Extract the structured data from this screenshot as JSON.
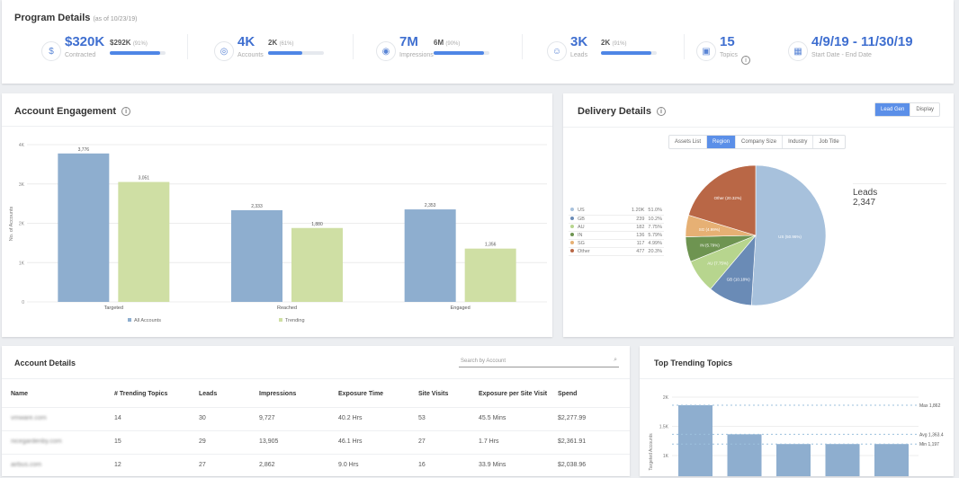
{
  "program": {
    "title": "Program Details",
    "as_of": "(as of 10/23/19)",
    "kpis": [
      {
        "icon": "dollar-icon",
        "glyph": "$",
        "value": "$320K",
        "label": "Contracted",
        "secondary": "$292K",
        "pct": "(91%)",
        "progress": 91
      },
      {
        "icon": "target-icon",
        "glyph": "◎",
        "value": "4K",
        "label": "Accounts",
        "secondary": "2K",
        "pct": "(61%)",
        "progress": 61
      },
      {
        "icon": "eye-icon",
        "glyph": "◉",
        "value": "7M",
        "label": "Impressions",
        "secondary": "6M",
        "pct": "(90%)",
        "progress": 90
      },
      {
        "icon": "user-icon",
        "glyph": "☺",
        "value": "3K",
        "label": "Leads",
        "secondary": "2K",
        "pct": "(91%)",
        "progress": 91
      },
      {
        "icon": "image-icon",
        "glyph": "▣",
        "value": "15",
        "label": "Topics"
      },
      {
        "icon": "calendar-icon",
        "glyph": "▦",
        "value": "4/9/19 - 11/30/19",
        "label": "Start Date - End Date"
      }
    ]
  },
  "engagement": {
    "title": "Account Engagement"
  },
  "delivery": {
    "title": "Delivery Details",
    "toggle": [
      "Lead Gen",
      "Display"
    ],
    "toggle_active": 0,
    "tabs": [
      "Assets List",
      "Region",
      "Company Size",
      "Industry",
      "Job Title"
    ],
    "tab_active": 1,
    "summary_label": "Leads",
    "summary_value": "2,347",
    "legend": [
      {
        "name": "US",
        "count": "1.20K",
        "pct": "51.0%",
        "color": "#a7c1dc"
      },
      {
        "name": "GB",
        "count": "239",
        "pct": "10.2%",
        "color": "#6a8bb6"
      },
      {
        "name": "AU",
        "count": "182",
        "pct": "7.75%",
        "color": "#b7d58e"
      },
      {
        "name": "IN",
        "count": "136",
        "pct": "5.79%",
        "color": "#6e9451"
      },
      {
        "name": "SG",
        "count": "117",
        "pct": "4.99%",
        "color": "#e6b074"
      },
      {
        "name": "Other",
        "count": "477",
        "pct": "20.3%",
        "color": "#b96746"
      }
    ]
  },
  "chart_data": [
    {
      "type": "bar",
      "title": "Account Engagement",
      "ylabel": "No. of Accounts",
      "categories": [
        "Targeted",
        "Reached",
        "Engaged"
      ],
      "yticks": [
        "0",
        "1K",
        "2K",
        "3K",
        "4K"
      ],
      "ylim": [
        0,
        4000
      ],
      "legend": "bottom",
      "series": [
        {
          "name": "All Accounts",
          "color": "#8eaecf",
          "values": [
            3776,
            2333,
            2353
          ],
          "labels": [
            "3,776",
            "2,333",
            "2,353"
          ]
        },
        {
          "name": "Trending",
          "color": "#cfdfa4",
          "values": [
            3051,
            1880,
            1356
          ],
          "labels": [
            "3,051",
            "1,880",
            "1,356"
          ]
        }
      ]
    },
    {
      "type": "pie",
      "categories": [
        "US",
        "GB",
        "AU",
        "IN",
        "SG",
        "Other"
      ],
      "values": [
        50.96,
        10.18,
        7.75,
        5.79,
        4.99,
        20.32
      ],
      "labels": [
        "US (50.96%)",
        "GB (10.18%)",
        "AU (7.75%)",
        "IN (5.79%)",
        "SG (4.99%)",
        "Other (20.32%)"
      ]
    },
    {
      "type": "bar",
      "title": "Top Trending Topics",
      "ylabel": "Targeted Accounts",
      "yticks": [
        "1K",
        "1.5K",
        "2K"
      ],
      "values": [
        1862,
        1364,
        1197,
        1197,
        1197
      ],
      "reference_lines": [
        {
          "label": "Max 1,862",
          "value": 1862
        },
        {
          "label": "Avg 1,363.4",
          "value": 1363.4
        },
        {
          "label": "Min 1,197",
          "value": 1197
        }
      ]
    }
  ],
  "accounts": {
    "title": "Account Details",
    "search_placeholder": "Search by Account",
    "columns": [
      "Name",
      "# Trending Topics",
      "Leads",
      "Impressions",
      "Exposure Time",
      "Site Visits",
      "Exposure per Site Visit",
      "Spend"
    ],
    "rows": [
      [
        "vmware.com",
        "14",
        "30",
        "9,727",
        "40.2 Hrs",
        "53",
        "45.5 Mins",
        "$2,277.99"
      ],
      [
        "nicegardenby.com",
        "15",
        "29",
        "13,905",
        "46.1 Hrs",
        "27",
        "1.7 Hrs",
        "$2,361.91"
      ],
      [
        "airbus.com",
        "12",
        "27",
        "2,862",
        "9.0 Hrs",
        "16",
        "33.9 Mins",
        "$2,038.96"
      ]
    ]
  },
  "trending": {
    "title": "Top Trending Topics"
  }
}
